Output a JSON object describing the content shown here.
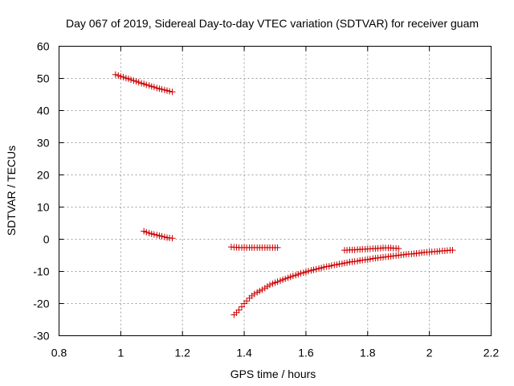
{
  "chart_data": {
    "type": "scatter",
    "title": "Day 067 of 2019, Sidereal Day-to-day VTEC variation (SDTVAR) for receiver guam",
    "xlabel": "GPS time / hours",
    "ylabel": "SDTVAR / TECUs",
    "xlim": [
      0.8,
      2.2
    ],
    "ylim": [
      -30,
      60
    ],
    "xticks": [
      0.8,
      1.0,
      1.2,
      1.4,
      1.6,
      1.8,
      2.0,
      2.2
    ],
    "xtick_labels": [
      "0.8",
      "1",
      "1.2",
      "1.4",
      "1.6",
      "1.8",
      "2",
      "2.2"
    ],
    "yticks": [
      -30,
      -20,
      -10,
      0,
      10,
      20,
      30,
      40,
      50,
      60
    ],
    "ytick_labels": [
      "-30",
      "-20",
      "-10",
      "0",
      "10",
      "20",
      "30",
      "40",
      "50",
      "60"
    ],
    "grid": true,
    "marker": "plus",
    "marker_color": "#cc0000",
    "series": [
      {
        "x": [
          0.983,
          0.992,
          1.0,
          1.008,
          1.017,
          1.025,
          1.033,
          1.042,
          1.05,
          1.058,
          1.067,
          1.075,
          1.083,
          1.092,
          1.1,
          1.108,
          1.117,
          1.125,
          1.133,
          1.142,
          1.15,
          1.158,
          1.167
        ],
        "y": [
          51.2,
          50.9,
          50.6,
          50.4,
          50.1,
          49.9,
          49.6,
          49.3,
          49.1,
          48.8,
          48.5,
          48.3,
          48.0,
          47.8,
          47.5,
          47.3,
          47.0,
          46.8,
          46.6,
          46.4,
          46.2,
          46.0,
          45.8
        ]
      },
      {
        "x": [
          1.075,
          1.083,
          1.092,
          1.1,
          1.108,
          1.117,
          1.125,
          1.133,
          1.142,
          1.15,
          1.158,
          1.167
        ],
        "y": [
          2.5,
          2.2,
          1.9,
          1.7,
          1.5,
          1.3,
          1.1,
          0.9,
          0.7,
          0.5,
          0.4,
          0.3
        ]
      },
      {
        "x": [
          1.358,
          1.367,
          1.375,
          1.383,
          1.392,
          1.4,
          1.408,
          1.417,
          1.425,
          1.433,
          1.442,
          1.45,
          1.458,
          1.467,
          1.475,
          1.483,
          1.492,
          1.5,
          1.508
        ],
        "y": [
          -2.4,
          -2.5,
          -2.5,
          -2.6,
          -2.6,
          -2.6,
          -2.6,
          -2.6,
          -2.6,
          -2.6,
          -2.6,
          -2.6,
          -2.6,
          -2.6,
          -2.6,
          -2.6,
          -2.6,
          -2.6,
          -2.6
        ]
      },
      {
        "x": [
          1.367,
          1.375,
          1.383,
          1.392,
          1.4,
          1.408,
          1.417,
          1.425,
          1.433,
          1.442,
          1.45,
          1.458,
          1.467,
          1.475,
          1.483,
          1.492,
          1.5,
          1.508,
          1.517,
          1.525,
          1.533,
          1.542,
          1.55,
          1.558,
          1.567,
          1.575,
          1.583,
          1.592,
          1.6,
          1.608,
          1.617,
          1.625,
          1.633,
          1.642,
          1.65,
          1.658,
          1.667,
          1.675,
          1.683,
          1.692,
          1.7,
          1.708,
          1.717,
          1.725,
          1.733,
          1.742,
          1.75,
          1.758,
          1.767,
          1.775,
          1.783,
          1.792,
          1.8,
          1.808,
          1.817,
          1.825,
          1.833,
          1.842,
          1.85,
          1.858,
          1.867,
          1.875,
          1.883,
          1.892,
          1.9,
          1.908,
          1.917,
          1.925,
          1.933,
          1.942,
          1.95,
          1.958,
          1.967,
          1.975,
          1.983,
          1.992,
          2.0,
          2.008,
          2.017,
          2.025,
          2.033,
          2.042,
          2.05,
          2.058,
          2.067,
          2.075
        ],
        "y": [
          -23.5,
          -22.8,
          -22.0,
          -21.0,
          -20.0,
          -19.2,
          -18.3,
          -17.6,
          -17.0,
          -16.5,
          -16.1,
          -15.7,
          -15.2,
          -14.7,
          -14.2,
          -13.8,
          -13.5,
          -13.2,
          -12.9,
          -12.6,
          -12.3,
          -12.0,
          -11.7,
          -11.4,
          -11.2,
          -10.9,
          -10.6,
          -10.4,
          -10.2,
          -9.9,
          -9.7,
          -9.5,
          -9.3,
          -9.1,
          -8.9,
          -8.7,
          -8.5,
          -8.4,
          -8.2,
          -8.0,
          -7.9,
          -7.7,
          -7.6,
          -7.4,
          -7.3,
          -7.1,
          -7.0,
          -6.9,
          -6.8,
          -6.6,
          -6.5,
          -6.4,
          -6.3,
          -6.2,
          -6.0,
          -5.9,
          -5.8,
          -5.7,
          -5.6,
          -5.5,
          -5.4,
          -5.3,
          -5.2,
          -5.1,
          -5.0,
          -4.9,
          -4.8,
          -4.7,
          -4.6,
          -4.6,
          -4.5,
          -4.4,
          -4.3,
          -4.2,
          -4.1,
          -4.0,
          -4.0,
          -3.9,
          -3.8,
          -3.8,
          -3.7,
          -3.6,
          -3.6,
          -3.5,
          -3.4,
          -3.4
        ]
      },
      {
        "x": [
          1.725,
          1.733,
          1.742,
          1.75,
          1.758,
          1.767,
          1.775,
          1.783,
          1.792,
          1.8,
          1.808,
          1.817,
          1.825,
          1.833,
          1.842,
          1.85,
          1.858,
          1.867,
          1.875,
          1.883,
          1.892,
          1.9
        ],
        "y": [
          -3.4,
          -3.4,
          -3.3,
          -3.3,
          -3.3,
          -3.2,
          -3.2,
          -3.1,
          -3.1,
          -3.0,
          -3.0,
          -2.9,
          -2.9,
          -2.8,
          -2.8,
          -2.7,
          -2.7,
          -2.7,
          -2.7,
          -2.8,
          -2.8,
          -2.9
        ]
      }
    ]
  }
}
